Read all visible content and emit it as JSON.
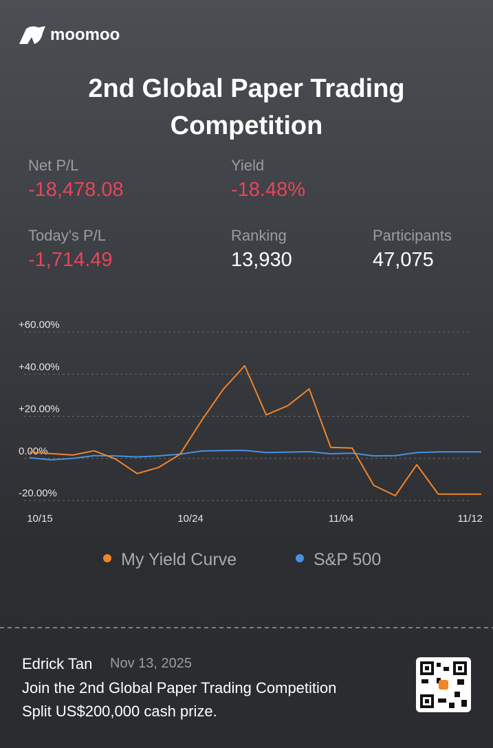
{
  "header": {
    "logo": "moomoo",
    "title": "2nd Global Paper Trading Competition"
  },
  "stats": [
    {
      "label": "Net P/L",
      "value": "-18,478.08"
    },
    {
      "label": "Yield",
      "value": "-18.48%"
    },
    {
      "label": "Today's P/L",
      "value": "-1,714.49"
    },
    {
      "label": "Ranking",
      "value": "13,930"
    },
    {
      "label": "Participants",
      "value": "47,075"
    }
  ],
  "chart_data": {
    "type": "line",
    "categories": [
      "10/15",
      null,
      null,
      null,
      null,
      null,
      null,
      "10/24",
      null,
      null,
      null,
      null,
      null,
      null,
      "11/04",
      null,
      null,
      null,
      null,
      null,
      "11/12",
      null
    ],
    "series": [
      {
        "name": "My Yield Curve",
        "color": "#f0862a",
        "values": [
          3,
          2.3,
          1.6,
          3.6,
          -0.3,
          -7.2,
          -4.3,
          2,
          18,
          32.8,
          44,
          20.7,
          25,
          33,
          5.2,
          4.9,
          -12.8,
          -17.7,
          -3,
          -17,
          -17,
          -17
        ]
      },
      {
        "name": "S&P 500",
        "color": "#4a90e2",
        "values": [
          0.3,
          -0.7,
          0,
          1.3,
          1.2,
          0.7,
          1.2,
          2,
          3.5,
          3.7,
          3.8,
          2.8,
          3,
          3.2,
          2.2,
          2.5,
          1.2,
          1.3,
          2.8,
          3.1,
          3.1,
          3.1
        ]
      }
    ],
    "ylim": [
      -20,
      60
    ],
    "yticks": [
      {
        "value": -20,
        "label": "-20.00%"
      },
      {
        "value": 0,
        "label": "0.00%"
      },
      {
        "value": 20,
        "label": "+20.00%"
      },
      {
        "value": 40,
        "label": "+40.00%"
      },
      {
        "value": 60,
        "label": "+60.00%"
      }
    ],
    "grid": true,
    "legend": "bottom"
  },
  "footer": {
    "name": "Edrick Tan",
    "date": "Nov 13, 2025",
    "line1": "Join the 2nd Global Paper Trading Competition",
    "line2": "Split US$200,000 cash prize."
  }
}
